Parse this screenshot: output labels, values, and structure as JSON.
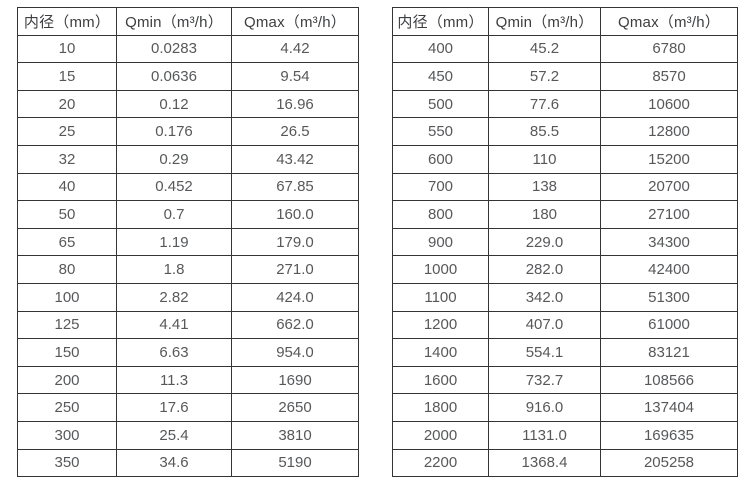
{
  "page": {
    "background": "#ffffff",
    "border_color": "#333436",
    "header_text_color": "#3d3e40",
    "cell_text_color": "#57585a",
    "description": "Flow meter diameter specification tables"
  },
  "chart_data": [
    {
      "type": "table",
      "title": "",
      "columns": [
        "内径（mm）",
        "Qmin（m³/h）",
        "Qmax（m³/h）"
      ],
      "rows": [
        [
          "10",
          "0.0283",
          "4.42"
        ],
        [
          "15",
          "0.0636",
          "9.54"
        ],
        [
          "20",
          "0.12",
          "16.96"
        ],
        [
          "25",
          "0.176",
          "26.5"
        ],
        [
          "32",
          "0.29",
          "43.42"
        ],
        [
          "40",
          "0.452",
          "67.85"
        ],
        [
          "50",
          "0.7",
          "160.0"
        ],
        [
          "65",
          "1.19",
          "179.0"
        ],
        [
          "80",
          "1.8",
          "271.0"
        ],
        [
          "100",
          "2.82",
          "424.0"
        ],
        [
          "125",
          "4.41",
          "662.0"
        ],
        [
          "150",
          "6.63",
          "954.0"
        ],
        [
          "200",
          "11.3",
          "1690"
        ],
        [
          "250",
          "17.6",
          "2650"
        ],
        [
          "300",
          "25.4",
          "3810"
        ],
        [
          "350",
          "34.6",
          "5190"
        ]
      ]
    },
    {
      "type": "table",
      "title": "",
      "columns": [
        "内径（mm）",
        "Qmin（m³/h）",
        "Qmax（m³/h）"
      ],
      "rows": [
        [
          "400",
          "45.2",
          "6780"
        ],
        [
          "450",
          "57.2",
          "8570"
        ],
        [
          "500",
          "77.6",
          "10600"
        ],
        [
          "550",
          "85.5",
          "12800"
        ],
        [
          "600",
          "110",
          "15200"
        ],
        [
          "700",
          "138",
          "20700"
        ],
        [
          "800",
          "180",
          "27100"
        ],
        [
          "900",
          "229.0",
          "34300"
        ],
        [
          "1000",
          "282.0",
          "42400"
        ],
        [
          "1100",
          "342.0",
          "51300"
        ],
        [
          "1200",
          "407.0",
          "61000"
        ],
        [
          "1400",
          "554.1",
          "83121"
        ],
        [
          "1600",
          "732.7",
          "108566"
        ],
        [
          "1800",
          "916.0",
          "137404"
        ],
        [
          "2000",
          "1131.0",
          "169635"
        ],
        [
          "2200",
          "1368.4",
          "205258"
        ]
      ]
    }
  ]
}
